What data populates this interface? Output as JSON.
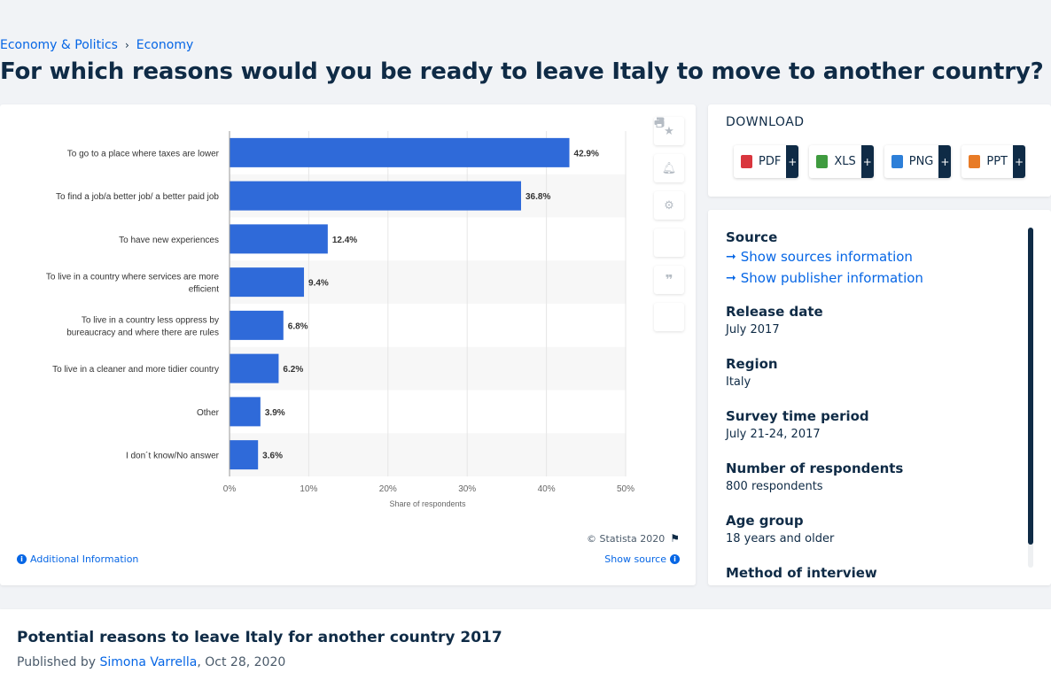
{
  "breadcrumb": {
    "items": [
      "Economy & Politics",
      "Economy"
    ],
    "separator": "›"
  },
  "page_title": "For which reasons would you be ready to leave Italy to move to another country?",
  "chart_data": {
    "type": "bar",
    "orientation": "horizontal",
    "categories": [
      "To go to a place where taxes are lower",
      "To find a job/a better job/ a better paid job",
      "To have new experiences",
      "To live in a country where services are more efficient",
      "To live in a country less oppress by bureaucracy and where there are rules",
      "To live in a cleaner and more tidier country",
      "Other",
      "I don´t know/No answer"
    ],
    "category_lines": [
      [
        "To go to a place where taxes are lower"
      ],
      [
        "To find a job/a better job/ a better paid job"
      ],
      [
        "To have new experiences"
      ],
      [
        "To live in a country where services are more",
        "efficient"
      ],
      [
        "To live in a country less oppress by",
        "bureaucracy and where there are rules"
      ],
      [
        "To live in a cleaner and more tidier country"
      ],
      [
        "Other"
      ],
      [
        "I don´t know/No answer"
      ]
    ],
    "values": [
      42.9,
      36.8,
      12.4,
      9.4,
      6.8,
      6.2,
      3.9,
      3.6
    ],
    "data_labels": [
      "42.9%",
      "36.8%",
      "12.4%",
      "9.4%",
      "6.8%",
      "6.2%",
      "3.9%",
      "3.6%"
    ],
    "xlim": [
      0,
      50
    ],
    "ticks": [
      0,
      10,
      20,
      30,
      40,
      50
    ],
    "tick_labels": [
      "0%",
      "10%",
      "20%",
      "30%",
      "40%",
      "50%"
    ],
    "xlabel": "Share of respondents",
    "title": "",
    "grid": true,
    "bar_color": "#2f6ad9"
  },
  "chart_footer": {
    "copyright": "© Statista 2020",
    "additional_info": "Additional Information",
    "show_source": "Show source"
  },
  "tools": [
    "star-icon",
    "bell-icon",
    "gear-icon",
    "share-icon",
    "quote-icon",
    "print-icon"
  ],
  "download": {
    "title": "DOWNLOAD",
    "buttons": [
      {
        "label": "PDF",
        "color": "#d9363e"
      },
      {
        "label": "XLS",
        "color": "#3f9b3f"
      },
      {
        "label": "PNG",
        "color": "#2d7fd8"
      },
      {
        "label": "PPT",
        "color": "#e87b26"
      }
    ],
    "plus": "+"
  },
  "details": {
    "source_label": "Source",
    "show_sources": "Show sources information",
    "show_publisher": "Show publisher information",
    "release_date_label": "Release date",
    "release_date": "July 2017",
    "region_label": "Region",
    "region": "Italy",
    "survey_period_label": "Survey time period",
    "survey_period": "July 21-24, 2017",
    "respondents_label": "Number of respondents",
    "respondents": "800 respondents",
    "age_group_label": "Age group",
    "age_group": "18 years and older",
    "method_label": "Method of interview"
  },
  "bottom": {
    "title": "Potential reasons to leave Italy for another country 2017",
    "published_prefix": "Published by",
    "author": "Simona Varrella",
    "date": ", Oct 28, 2020"
  },
  "colors": {
    "link": "#0666e5",
    "text": "#0f2b46",
    "accent": "#2f6ad9"
  }
}
